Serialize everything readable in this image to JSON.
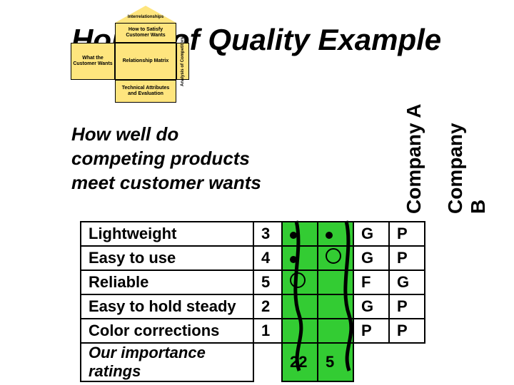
{
  "title": "House of Quality Example",
  "hoq": {
    "roof": "Interrelationships",
    "how": "How to Satisfy Customer Wants",
    "what": "What the Customer Wants",
    "rel": "Relationship Matrix",
    "comp": "Analysis of Competitors",
    "tech": "Technical Attributes and Evaluation"
  },
  "question": "How well do competing products meet customer wants",
  "companies": {
    "a": "Company A",
    "b": "Company B"
  },
  "rows": [
    {
      "attr": "Lightweight",
      "num": "3",
      "s1": "dot",
      "s2": "dot",
      "a": "G",
      "b": "P"
    },
    {
      "attr": "Easy to use",
      "num": "4",
      "s1": "dot",
      "s2": "circle",
      "a": "G",
      "b": "P"
    },
    {
      "attr": "Reliable",
      "num": "5",
      "s1": "circle",
      "s2": "",
      "a": "F",
      "b": "G"
    },
    {
      "attr": "Easy to hold steady",
      "num": "2",
      "s1": "",
      "s2": "",
      "a": "G",
      "b": "P"
    },
    {
      "attr": "Color corrections",
      "num": "1",
      "s1": "",
      "s2": "",
      "a": "P",
      "b": "P"
    }
  ],
  "footer": {
    "label": "Our importance ratings",
    "v1": "22",
    "v2": "5"
  },
  "colors": {
    "green": "#33cc33",
    "roof": "#fee57e"
  }
}
